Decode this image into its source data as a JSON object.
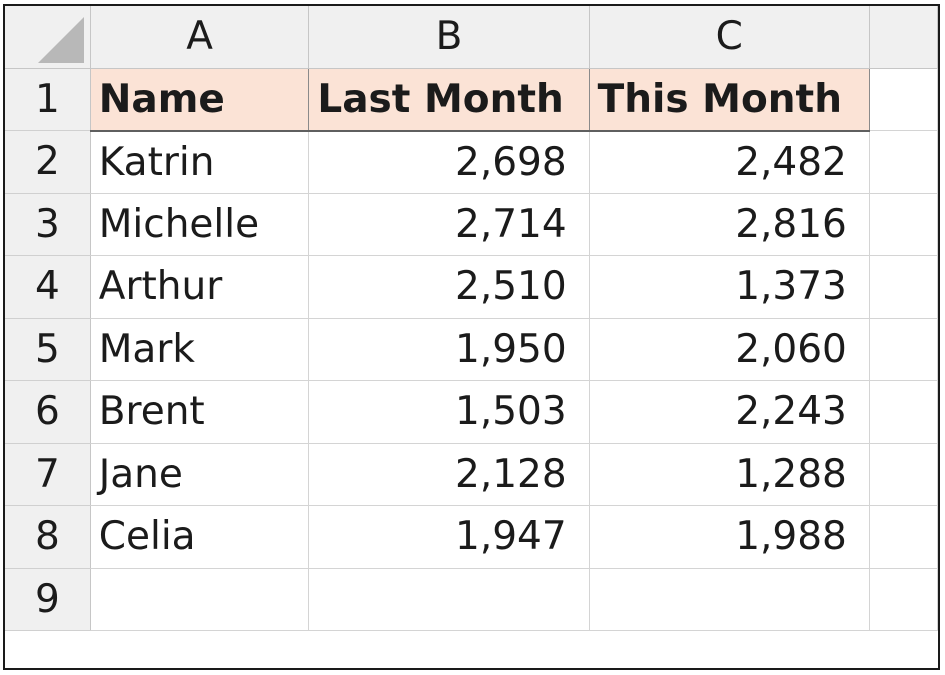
{
  "columns": [
    "A",
    "B",
    "C"
  ],
  "rows": [
    "1",
    "2",
    "3",
    "4",
    "5",
    "6",
    "7",
    "8",
    "9"
  ],
  "header": {
    "name": "Name",
    "last_month": "Last Month",
    "this_month": "This Month"
  },
  "data": [
    {
      "name": "Katrin",
      "last": "2,698",
      "this": "2,482"
    },
    {
      "name": "Michelle",
      "last": "2,714",
      "this": "2,816"
    },
    {
      "name": "Arthur",
      "last": "2,510",
      "this": "1,373"
    },
    {
      "name": "Mark",
      "last": "1,950",
      "this": "2,060"
    },
    {
      "name": "Brent",
      "last": "1,503",
      "this": "2,243"
    },
    {
      "name": "Jane",
      "last": "2,128",
      "this": "1,288"
    },
    {
      "name": "Celia",
      "last": "1,947",
      "this": "1,988"
    }
  ],
  "colors": {
    "header_fill": "#fbe3d6",
    "gridline": "#d4d4d4",
    "heading_bg": "#f0f0f0"
  }
}
